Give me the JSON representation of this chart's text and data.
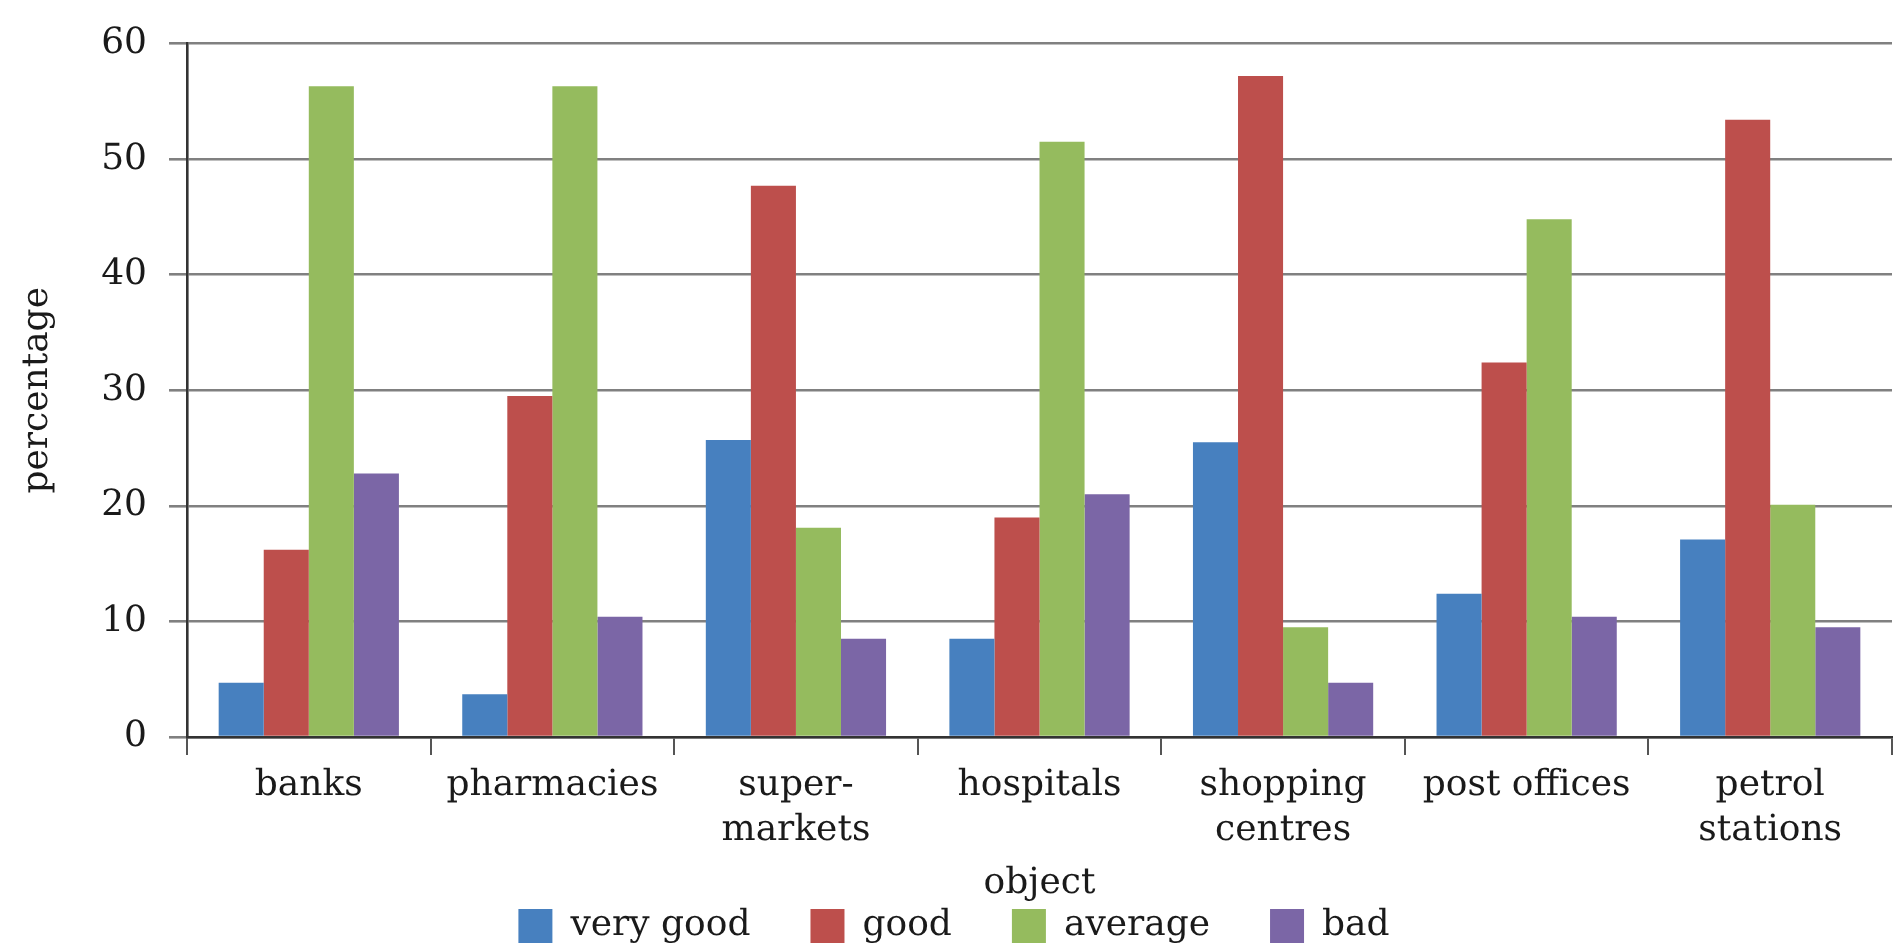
{
  "chart_data": {
    "type": "bar",
    "xlabel": "object",
    "ylabel": "percentage",
    "categories": [
      "banks",
      "pharmacies",
      "super-\nmarkets",
      "hospitals",
      "shopping\ncentres",
      "post offices",
      "petrol\nstations"
    ],
    "series": [
      {
        "name": "very good",
        "color": "#4780bf",
        "values": [
          4.7,
          3.7,
          25.7,
          8.5,
          25.5,
          12.4,
          17.1
        ]
      },
      {
        "name": "good",
        "color": "#bd4f4c",
        "values": [
          16.2,
          29.5,
          47.7,
          19.0,
          57.2,
          32.4,
          53.4
        ]
      },
      {
        "name": "average",
        "color": "#95bb5e",
        "values": [
          56.3,
          56.3,
          18.1,
          51.5,
          9.5,
          44.8,
          20.1
        ]
      },
      {
        "name": "bad",
        "color": "#7b66a6",
        "values": [
          22.8,
          10.4,
          8.5,
          21.0,
          4.7,
          10.4,
          9.5
        ]
      }
    ],
    "ylim": [
      0,
      60
    ],
    "yticks": [
      0,
      10,
      20,
      30,
      40,
      50,
      60
    ],
    "grid": "y",
    "legend": "bottom"
  }
}
